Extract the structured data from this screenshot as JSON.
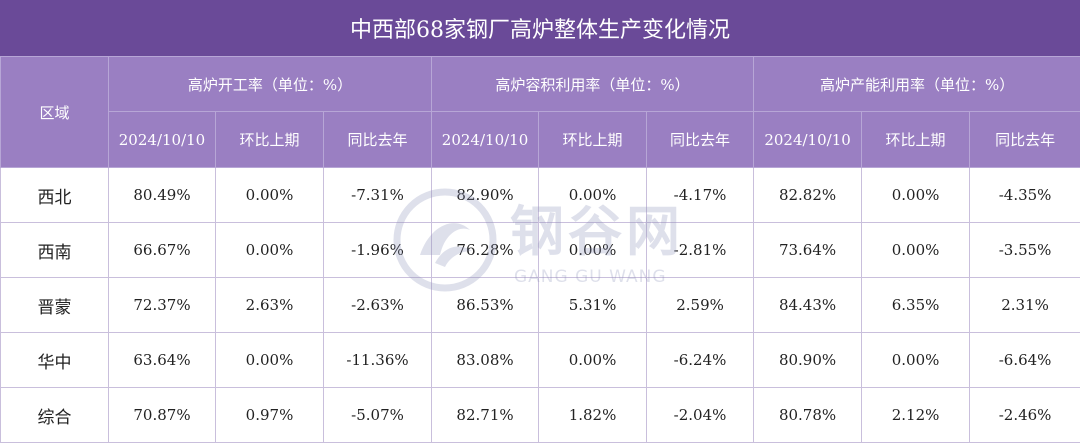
{
  "title": "中西部68家钢厂高炉整体生产变化情况",
  "watermark": {
    "main": "钢谷网",
    "sub": "GANG GU WANG",
    "icon": "gangguwang-logo-icon"
  },
  "header": {
    "region": "区域",
    "groups": [
      "高炉开工率（单位：%）",
      "高炉容积利用率（单位：%）",
      "高炉产能利用率（单位：%）"
    ],
    "sub": [
      "2024/10/10",
      "环比上期",
      "同比去年"
    ]
  },
  "colors": {
    "title_bg": "#6a4a98",
    "header_bg": "#9a7fc2",
    "up": "#e8231c",
    "down": "#1aa64a"
  },
  "rows": [
    {
      "region": "西北",
      "vals": [
        "80.49%",
        "0.00%",
        "-7.31%",
        "82.90%",
        "0.00%",
        "-4.17%",
        "82.82%",
        "0.00%",
        "-4.35%"
      ]
    },
    {
      "region": "西南",
      "vals": [
        "66.67%",
        "0.00%",
        "-1.96%",
        "76.28%",
        "0.00%",
        "-2.81%",
        "73.64%",
        "0.00%",
        "-3.55%"
      ]
    },
    {
      "region": "晋蒙",
      "vals": [
        "72.37%",
        "2.63%",
        "-2.63%",
        "86.53%",
        "5.31%",
        "2.59%",
        "84.43%",
        "6.35%",
        "2.31%"
      ]
    },
    {
      "region": "华中",
      "vals": [
        "63.64%",
        "0.00%",
        "-11.36%",
        "83.08%",
        "0.00%",
        "-6.24%",
        "80.90%",
        "0.00%",
        "-6.64%"
      ]
    },
    {
      "region": "综合",
      "vals": [
        "70.87%",
        "0.97%",
        "-5.07%",
        "82.71%",
        "1.82%",
        "-2.04%",
        "80.78%",
        "2.12%",
        "-2.46%"
      ]
    }
  ]
}
